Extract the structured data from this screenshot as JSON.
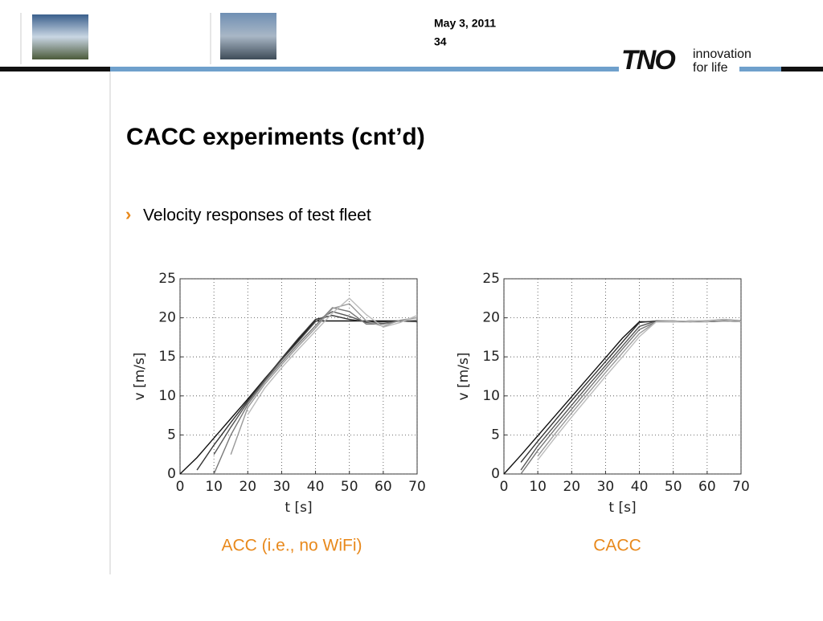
{
  "slide": {
    "date": "May 3, 2011",
    "page": "34",
    "title": "CACC experiments (cnt’d)",
    "bullet": "Velocity responses of test fleet"
  },
  "logo": {
    "mark": "TNO",
    "line1": "innovation",
    "line2": "for life"
  },
  "chart_data": [
    {
      "type": "line",
      "title": "ACC (i.e., no WiFi)",
      "x_label": "t [s]",
      "y_label": "v [m/s]",
      "xlim": [
        0,
        70
      ],
      "xticks": [
        0,
        10,
        20,
        30,
        40,
        50,
        60,
        70
      ],
      "ylim": [
        0,
        25
      ],
      "yticks": [
        0,
        5,
        10,
        15,
        20,
        25
      ],
      "grid": true,
      "x": [
        0,
        5,
        10,
        15,
        20,
        25,
        30,
        35,
        40,
        45,
        50,
        55,
        60,
        65,
        70
      ],
      "series": [
        {
          "color": "#111111",
          "values": [
            0,
            2.1,
            4.6,
            7.1,
            9.6,
            12.2,
            14.7,
            17.2,
            19.6,
            19.6,
            19.6,
            19.6,
            19.6,
            19.6,
            19.5
          ]
        },
        {
          "color": "#333333",
          "values": [
            null,
            0.5,
            3.7,
            6.6,
            9.4,
            12.1,
            14.8,
            17.4,
            19.8,
            20.3,
            19.8,
            19.5,
            19.5,
            19.6,
            19.5
          ]
        },
        {
          "color": "#555555",
          "values": [
            null,
            null,
            2.5,
            6,
            9.2,
            12,
            14.6,
            17,
            19.5,
            20.8,
            20.2,
            19.4,
            19.3,
            19.6,
            19.6
          ]
        },
        {
          "color": "#777777",
          "values": [
            null,
            null,
            0,
            5,
            8.9,
            11.8,
            14.3,
            16.7,
            19,
            21.3,
            20.8,
            19.2,
            19.2,
            19.6,
            19.7
          ]
        },
        {
          "color": "#999999",
          "values": [
            null,
            null,
            null,
            2.5,
            8.5,
            11.5,
            14,
            16.4,
            18.7,
            21.2,
            21.8,
            19.6,
            18.9,
            19.7,
            20
          ]
        },
        {
          "color": "#bbbbbb",
          "values": [
            null,
            null,
            null,
            null,
            7.6,
            11,
            13.6,
            16,
            18.3,
            20.6,
            22.5,
            20.4,
            18.8,
            19.4,
            20.3
          ]
        }
      ]
    },
    {
      "type": "line",
      "title": "CACC",
      "x_label": "t [s]",
      "y_label": "v [m/s]",
      "xlim": [
        0,
        70
      ],
      "xticks": [
        0,
        10,
        20,
        30,
        40,
        50,
        60,
        70
      ],
      "ylim": [
        0,
        25
      ],
      "yticks": [
        0,
        5,
        10,
        15,
        20,
        25
      ],
      "grid": true,
      "x": [
        0,
        5,
        10,
        15,
        20,
        25,
        30,
        35,
        40,
        45,
        50,
        55,
        60,
        65,
        70
      ],
      "series": [
        {
          "color": "#111111",
          "values": [
            0,
            2.4,
            4.9,
            7.4,
            9.9,
            12.4,
            14.9,
            17.4,
            19.5,
            19.5,
            19.5,
            19.5,
            19.5,
            19.6,
            19.5
          ]
        },
        {
          "color": "#333333",
          "values": [
            null,
            1.5,
            4.2,
            6.8,
            9.4,
            11.9,
            14.4,
            16.9,
            19.4,
            19.6,
            19.5,
            19.6,
            19.5,
            19.7,
            19.5
          ]
        },
        {
          "color": "#555555",
          "values": [
            null,
            0.5,
            3.6,
            6.2,
            8.8,
            11.4,
            13.9,
            16.4,
            18.9,
            19.6,
            19.6,
            19.5,
            19.6,
            19.8,
            19.6
          ]
        },
        {
          "color": "#777777",
          "values": [
            null,
            0,
            3,
            5.7,
            8.3,
            10.9,
            13.5,
            16,
            18.5,
            19.5,
            19.5,
            19.6,
            19.6,
            19.7,
            19.6
          ]
        },
        {
          "color": "#999999",
          "values": [
            null,
            null,
            2.3,
            5.1,
            7.8,
            10.4,
            13,
            15.5,
            18,
            19.5,
            19.6,
            19.5,
            19.6,
            19.6,
            19.5
          ]
        },
        {
          "color": "#bbbbbb",
          "values": [
            null,
            null,
            1.8,
            4.6,
            7.3,
            9.9,
            12.5,
            15,
            17.6,
            19.5,
            19.5,
            19.6,
            19.5,
            19.8,
            19.5
          ]
        }
      ]
    }
  ]
}
